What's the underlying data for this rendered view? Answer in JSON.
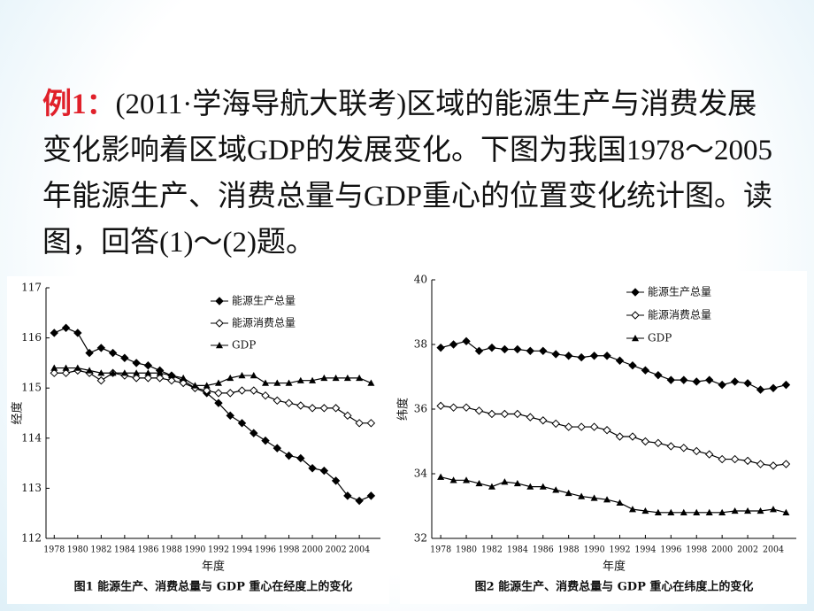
{
  "question": {
    "prefix": "例1：",
    "text": "(2011·学海导航大联考)区域的能源生产与消费发展变化影响着区域GDP的发展变化。下图为我国1978～2005年能源生产、消费总量与GDP重心的位置变化统计图。读图，回答(1)～(2)题。"
  },
  "chart_data": [
    {
      "type": "line",
      "caption": "图1 能源生产、消费总量与 GDP 重心在经度上的变化",
      "x_label": "年度",
      "y_label": "经度",
      "x": [
        1978,
        1979,
        1980,
        1981,
        1982,
        1983,
        1984,
        1985,
        1986,
        1987,
        1988,
        1989,
        1990,
        1991,
        1992,
        1993,
        1994,
        1995,
        1996,
        1997,
        1998,
        1999,
        2000,
        2001,
        2002,
        2003,
        2004,
        2005
      ],
      "xlim": [
        1977.3,
        2005.8
      ],
      "xticks": [
        1978,
        1980,
        1982,
        1984,
        1986,
        1988,
        1990,
        1992,
        1994,
        1996,
        1998,
        2000,
        2002,
        2004
      ],
      "ylim": [
        112,
        117
      ],
      "yticks": [
        112,
        113,
        114,
        115,
        116,
        117
      ],
      "series": [
        {
          "name": "能源生产总量",
          "color": "#000000",
          "marker": "diamond",
          "values": [
            116.1,
            116.2,
            116.1,
            115.7,
            115.8,
            115.7,
            115.6,
            115.5,
            115.45,
            115.35,
            115.25,
            115.15,
            115.0,
            114.9,
            114.7,
            114.45,
            114.3,
            114.1,
            113.95,
            113.8,
            113.65,
            113.6,
            113.4,
            113.35,
            113.15,
            112.85,
            112.75,
            112.85
          ]
        },
        {
          "name": "能源消费总量",
          "color": "#000000",
          "marker": "open-diamond",
          "values": [
            115.3,
            115.3,
            115.35,
            115.3,
            115.15,
            115.3,
            115.25,
            115.2,
            115.2,
            115.2,
            115.15,
            115.1,
            115.0,
            114.95,
            114.9,
            114.9,
            114.95,
            114.95,
            114.85,
            114.75,
            114.7,
            114.65,
            114.6,
            114.6,
            114.6,
            114.45,
            114.3,
            114.3
          ]
        },
        {
          "name": "GDP",
          "color": "#000000",
          "marker": "triangle",
          "values": [
            115.4,
            115.4,
            115.4,
            115.35,
            115.3,
            115.3,
            115.3,
            115.3,
            115.3,
            115.3,
            115.25,
            115.2,
            115.05,
            115.05,
            115.1,
            115.2,
            115.25,
            115.25,
            115.1,
            115.1,
            115.1,
            115.15,
            115.15,
            115.2,
            115.2,
            115.2,
            115.2,
            115.1
          ]
        }
      ]
    },
    {
      "type": "line",
      "caption": "图2 能源生产、消费总量与 GDP 重心在纬度上的变化",
      "x_label": "年度",
      "y_label": "纬度",
      "x": [
        1978,
        1979,
        1980,
        1981,
        1982,
        1983,
        1984,
        1985,
        1986,
        1987,
        1988,
        1989,
        1990,
        1991,
        1992,
        1993,
        1994,
        1995,
        1996,
        1997,
        1998,
        1999,
        2000,
        2001,
        2002,
        2003,
        2004,
        2005
      ],
      "xlim": [
        1977.3,
        2005.8
      ],
      "xticks": [
        1978,
        1980,
        1982,
        1984,
        1986,
        1988,
        1990,
        1992,
        1994,
        1996,
        1998,
        2000,
        2002,
        2004
      ],
      "ylim": [
        32,
        40
      ],
      "yticks": [
        32,
        34,
        36,
        38,
        40
      ],
      "series": [
        {
          "name": "能源生产总量",
          "color": "#000000",
          "marker": "diamond",
          "values": [
            37.9,
            38.0,
            38.1,
            37.8,
            37.9,
            37.85,
            37.85,
            37.8,
            37.8,
            37.7,
            37.65,
            37.6,
            37.65,
            37.65,
            37.5,
            37.35,
            37.2,
            37.05,
            36.9,
            36.9,
            36.85,
            36.9,
            36.75,
            36.85,
            36.8,
            36.6,
            36.65,
            36.75
          ]
        },
        {
          "name": "能源消费总量",
          "color": "#000000",
          "marker": "open-diamond",
          "values": [
            36.1,
            36.05,
            36.05,
            35.95,
            35.85,
            35.85,
            35.85,
            35.75,
            35.65,
            35.55,
            35.45,
            35.45,
            35.45,
            35.35,
            35.15,
            35.15,
            35.0,
            34.95,
            34.85,
            34.8,
            34.7,
            34.6,
            34.45,
            34.45,
            34.4,
            34.3,
            34.25,
            34.3
          ]
        },
        {
          "name": "GDP",
          "color": "#000000",
          "marker": "triangle",
          "values": [
            33.9,
            33.8,
            33.8,
            33.7,
            33.6,
            33.75,
            33.7,
            33.6,
            33.6,
            33.5,
            33.4,
            33.3,
            33.25,
            33.2,
            33.1,
            32.9,
            32.85,
            32.8,
            32.8,
            32.8,
            32.8,
            32.8,
            32.8,
            32.85,
            32.85,
            32.85,
            32.9,
            32.8
          ]
        }
      ]
    }
  ]
}
